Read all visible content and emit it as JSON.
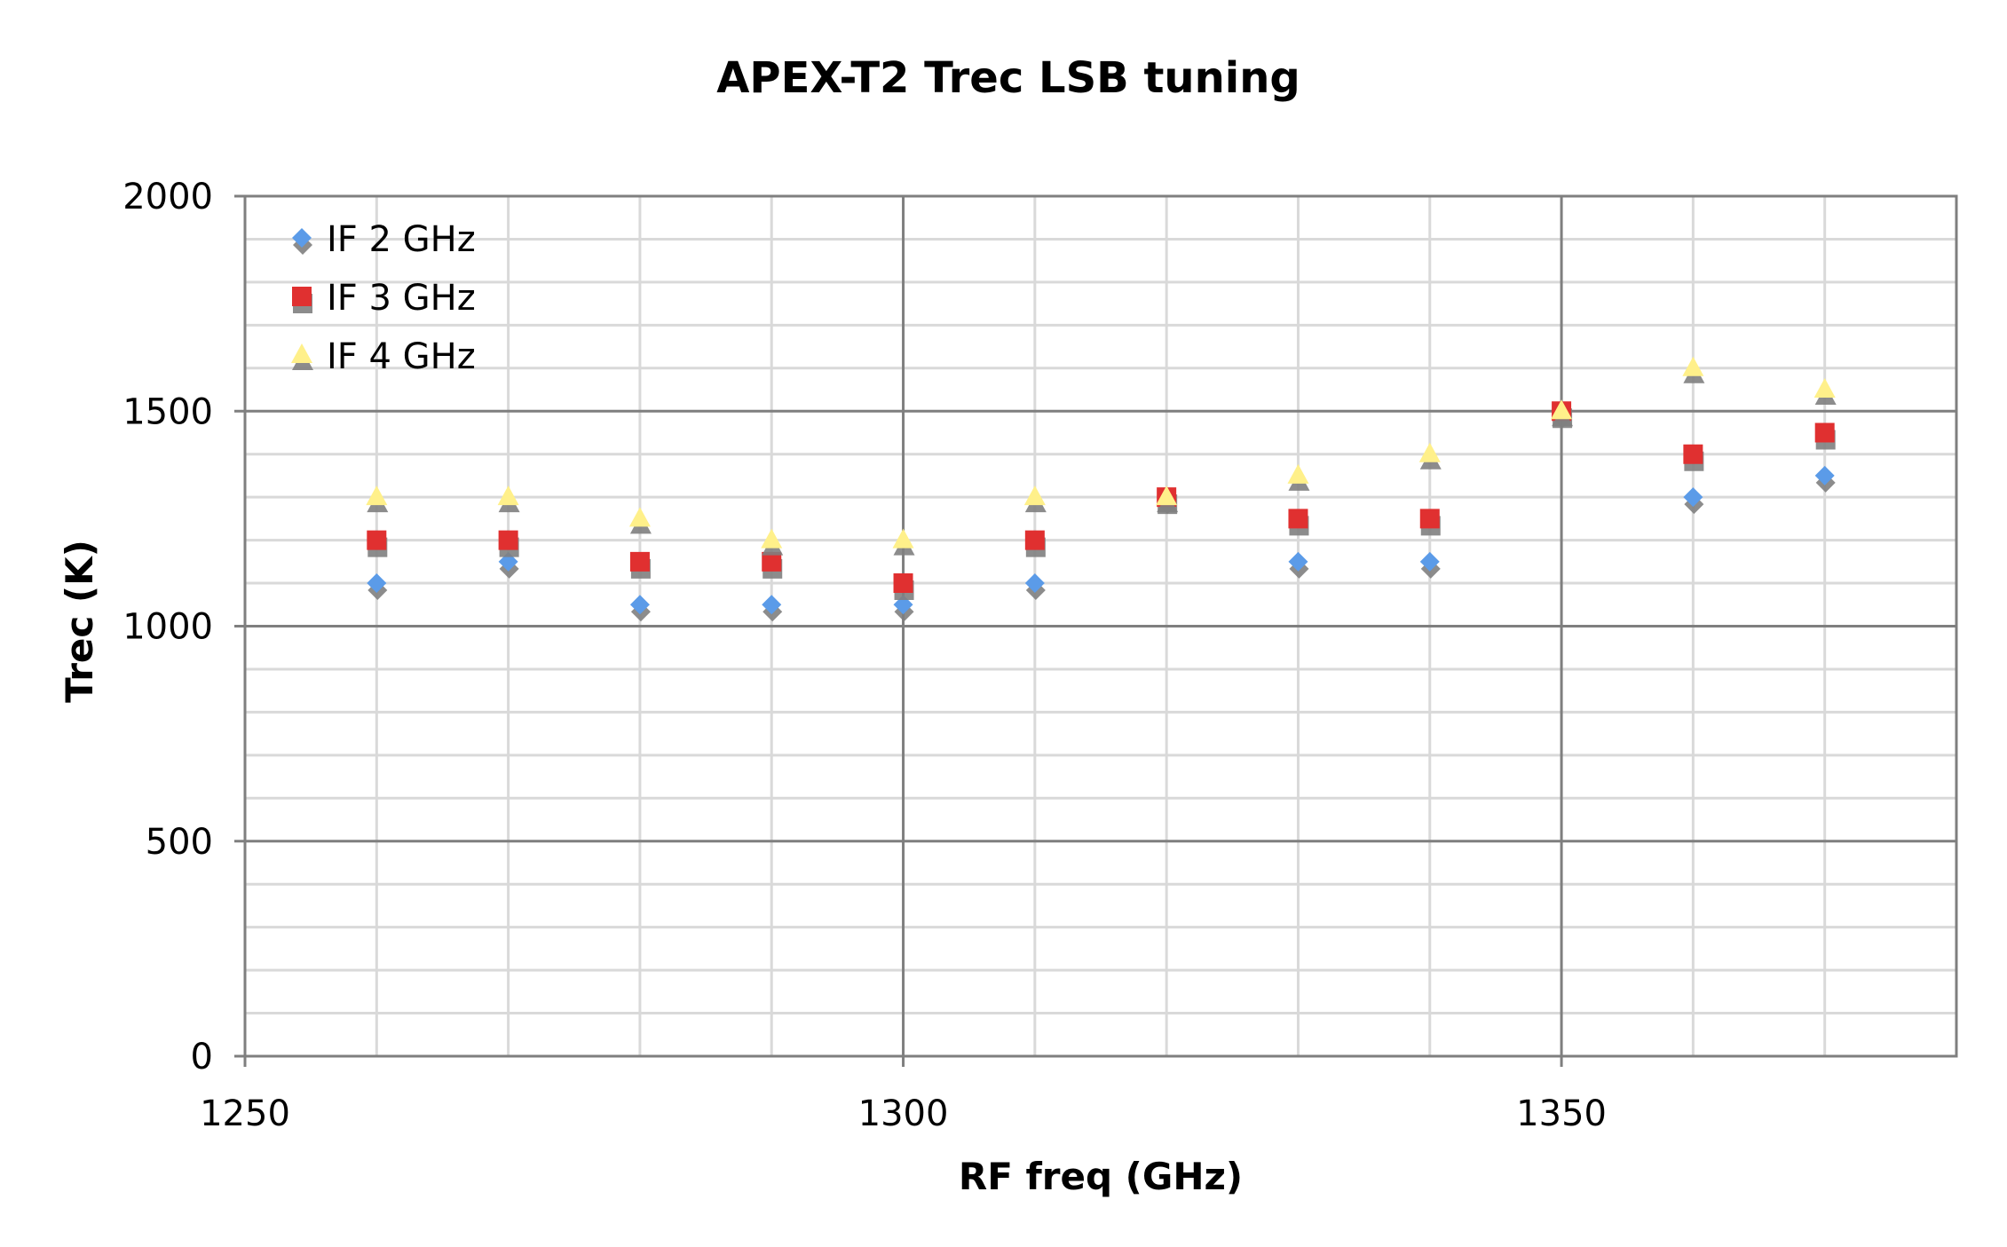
{
  "chart_data": {
    "type": "scatter",
    "title": "APEX-T2 Trec LSB tuning",
    "xlabel": "RF freq (GHz)",
    "ylabel": "Trec (K)",
    "xlim": [
      1250,
      1380
    ],
    "ylim": [
      0,
      2000
    ],
    "x_ticks": [
      1250,
      1300,
      1350
    ],
    "y_ticks": [
      0,
      500,
      1000,
      1500,
      2000
    ],
    "x_tick_labels": [
      "1250",
      "1300",
      "1350"
    ],
    "y_tick_labels": [
      "0",
      "500",
      "1000",
      "1500",
      "2000"
    ],
    "x_minor_step": 10,
    "y_minor_step": 100,
    "grid": true,
    "legend_position": "top-left",
    "series": [
      {
        "name": "IF 2 GHz",
        "marker": "diamond",
        "color": "#5B9BE8",
        "x": [
          1260,
          1270,
          1280,
          1290,
          1300,
          1310,
          1320,
          1330,
          1340,
          1350,
          1360,
          1370
        ],
        "y": [
          1100,
          1150,
          1050,
          1050,
          1050,
          1100,
          1300,
          1150,
          1150,
          1500,
          1300,
          1350
        ]
      },
      {
        "name": "IF 3 GHz",
        "marker": "square",
        "color": "#E03030",
        "x": [
          1260,
          1270,
          1280,
          1290,
          1300,
          1310,
          1320,
          1330,
          1340,
          1350,
          1360,
          1370
        ],
        "y": [
          1200,
          1200,
          1150,
          1150,
          1100,
          1200,
          1300,
          1250,
          1250,
          1500,
          1400,
          1450
        ]
      },
      {
        "name": "IF 4 GHz",
        "marker": "triangle",
        "color": "#FFF08A",
        "x": [
          1260,
          1270,
          1280,
          1290,
          1300,
          1310,
          1320,
          1330,
          1340,
          1350,
          1360,
          1370
        ],
        "y": [
          1300,
          1300,
          1250,
          1200,
          1200,
          1300,
          1300,
          1350,
          1400,
          1500,
          1600,
          1550
        ]
      }
    ]
  }
}
